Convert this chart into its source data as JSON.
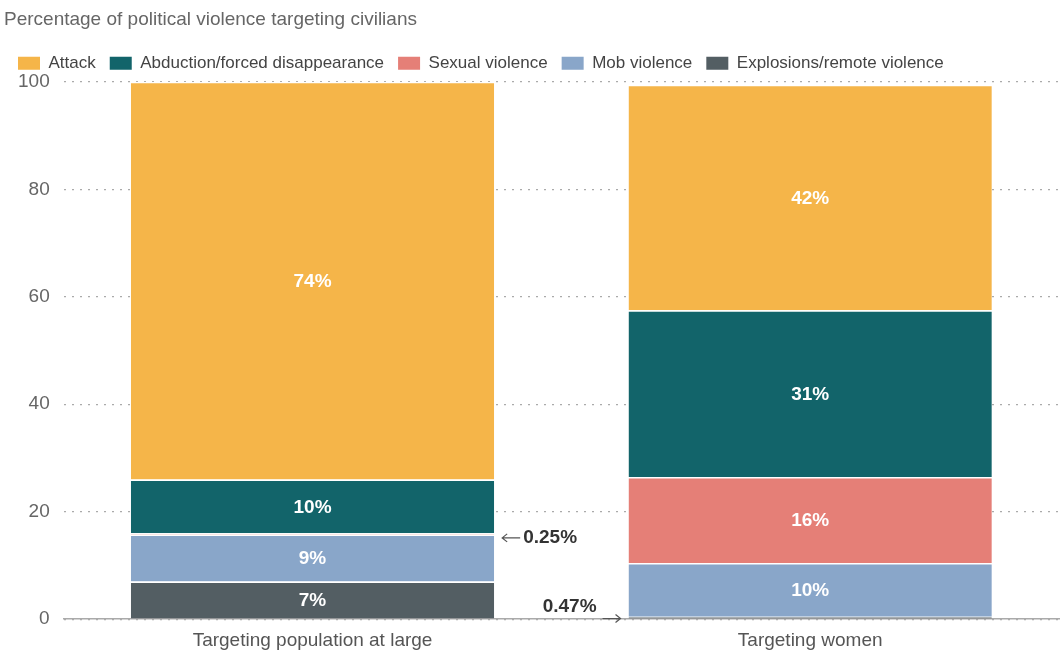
{
  "chart_data": {
    "type": "bar",
    "title": "Percentage of political violence targeting civilians",
    "categories": [
      "Targeting population at large",
      "Targeting women"
    ],
    "stacked": true,
    "legend": "top",
    "grid": "y",
    "ylim": [
      0,
      100
    ],
    "yticks": [
      0,
      20,
      40,
      60,
      80,
      100
    ],
    "series": [
      {
        "name": "Explosions/remote violence",
        "color": "#535e63",
        "values": [
          7,
          0.47
        ],
        "value_labels": [
          "7%",
          "0.47%"
        ]
      },
      {
        "name": "Mob violence",
        "color": "#89a6c9",
        "values": [
          8.75,
          10
        ],
        "value_labels": [
          "9%",
          "10%"
        ]
      },
      {
        "name": "Sexual violence",
        "color": "#e57f77",
        "values": [
          0.25,
          16
        ],
        "value_labels": [
          "0.25%",
          "16%"
        ]
      },
      {
        "name": "Abduction/forced disappearance",
        "color": "#12646a",
        "values": [
          10,
          31
        ],
        "value_labels": [
          "10%",
          "31%"
        ]
      },
      {
        "name": "Attack",
        "color": "#f5b549",
        "values": [
          74,
          42
        ],
        "value_labels": [
          "74%",
          "42%"
        ]
      }
    ]
  }
}
